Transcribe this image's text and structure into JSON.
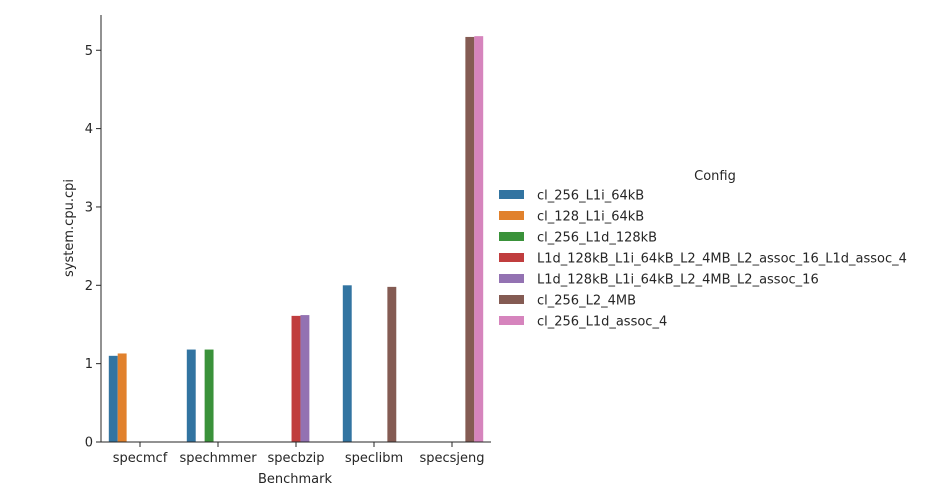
{
  "chart_data": {
    "type": "bar",
    "xlabel": "Benchmark",
    "ylabel": "system.cpu.cpi",
    "ylim": [
      0,
      5.45
    ],
    "yticks": [
      0,
      1,
      2,
      3,
      4,
      5
    ],
    "categories": [
      "specmcf",
      "spechmmer",
      "specbzip",
      "speclibm",
      "specsjeng"
    ],
    "legend_title": "Config",
    "legend_position": "right",
    "series": [
      {
        "name": "cl_256_L1i_64kB",
        "color": "#3274a1",
        "values": [
          1.1,
          1.18,
          null,
          2.0,
          null
        ]
      },
      {
        "name": "cl_128_L1i_64kB",
        "color": "#e1812c",
        "values": [
          1.13,
          null,
          null,
          null,
          null
        ]
      },
      {
        "name": "cl_256_L1d_128kB",
        "color": "#3a923a",
        "values": [
          null,
          1.18,
          null,
          null,
          null
        ]
      },
      {
        "name": "L1d_128kB_L1i_64kB_L2_4MB_L2_assoc_16_L1d_assoc_4",
        "color": "#c03d3e",
        "values": [
          null,
          null,
          1.61,
          null,
          null
        ]
      },
      {
        "name": "L1d_128kB_L1i_64kB_L2_4MB_L2_assoc_16",
        "color": "#9372b2",
        "values": [
          null,
          null,
          1.62,
          null,
          null
        ]
      },
      {
        "name": "cl_256_L2_4MB",
        "color": "#845b53",
        "values": [
          null,
          null,
          null,
          1.98,
          5.17
        ]
      },
      {
        "name": "cl_256_L1d_assoc_4",
        "color": "#d684bd",
        "values": [
          null,
          null,
          null,
          null,
          5.18
        ]
      }
    ]
  }
}
